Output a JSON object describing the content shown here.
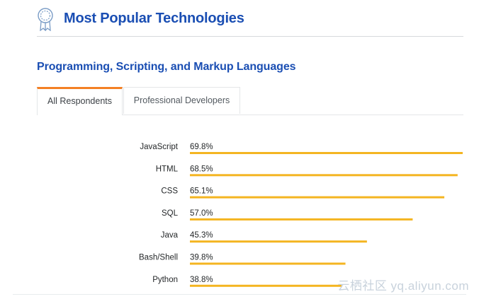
{
  "header": {
    "title": "Most Popular Technologies",
    "icon": "award-ribbon-icon"
  },
  "section": {
    "title": "Programming, Scripting, and Markup Languages"
  },
  "tabs": [
    {
      "label": "All Respondents",
      "active": true
    },
    {
      "label": "Professional Developers",
      "active": false
    }
  ],
  "colors": {
    "title": "#1a4eb3",
    "bar": "#f4b521",
    "tab_accent": "#f48024"
  },
  "watermark": "云栖社区 yq.aliyun.com",
  "chart_data": {
    "type": "bar",
    "orientation": "horizontal",
    "categories": [
      "JavaScript",
      "HTML",
      "CSS",
      "SQL",
      "Java",
      "Bash/Shell",
      "Python"
    ],
    "values": [
      69.8,
      68.5,
      65.1,
      57.0,
      45.3,
      39.8,
      38.8
    ],
    "value_labels": [
      "69.8%",
      "68.5%",
      "65.1%",
      "57.0%",
      "45.3%",
      "39.8%",
      "38.8%"
    ],
    "xlim": [
      0,
      69.8
    ],
    "grid": false,
    "legend": false
  }
}
